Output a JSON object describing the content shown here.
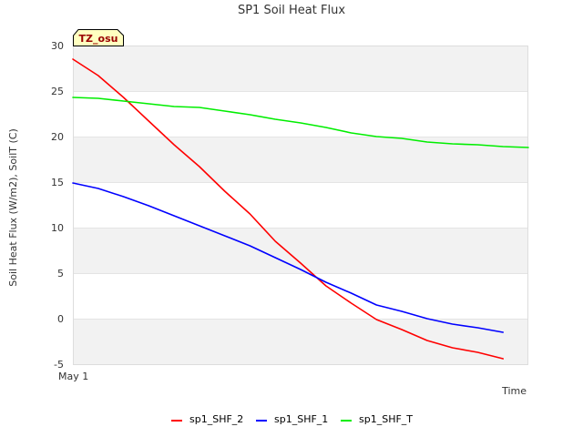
{
  "chart_data": {
    "type": "line",
    "title": "SP1 Soil Heat Flux",
    "xlabel": "Time",
    "ylabel": "Soil Heat Flux (W/m2), SoilT (C)",
    "badge": "TZ_osu",
    "x_ticks": [
      "May 1"
    ],
    "x": [
      0,
      1,
      2,
      3,
      4,
      5,
      6,
      7,
      8,
      9,
      10,
      11,
      12,
      13,
      14,
      15,
      16,
      17,
      18
    ],
    "ylim": [
      -5,
      30
    ],
    "yticks": [
      -5,
      0,
      5,
      10,
      15,
      20,
      25,
      30
    ],
    "grid": "alternating horizontal bands",
    "legend_position": "bottom",
    "series": [
      {
        "name": "sp1_SHF_2",
        "color": "#ff0000",
        "values": [
          28.5,
          26.7,
          24.3,
          21.7,
          19.1,
          16.7,
          14.0,
          11.5,
          8.5,
          6.1,
          3.6,
          1.7,
          -0.1,
          -1.2,
          -2.4,
          -3.2,
          -3.7,
          -4.4,
          null
        ]
      },
      {
        "name": "sp1_SHF_1",
        "color": "#0000ff",
        "values": [
          14.9,
          14.3,
          13.4,
          12.4,
          11.3,
          10.2,
          9.1,
          8.0,
          6.7,
          5.4,
          4.0,
          2.8,
          1.5,
          0.8,
          0.0,
          -0.6,
          -1.0,
          -1.5,
          null
        ]
      },
      {
        "name": "sp1_SHF_T",
        "color": "#00ee00",
        "values": [
          24.3,
          24.2,
          23.9,
          23.6,
          23.3,
          23.2,
          22.8,
          22.4,
          21.9,
          21.5,
          21.0,
          20.4,
          20.0,
          19.8,
          19.4,
          19.2,
          19.1,
          18.9,
          18.8
        ]
      }
    ]
  }
}
